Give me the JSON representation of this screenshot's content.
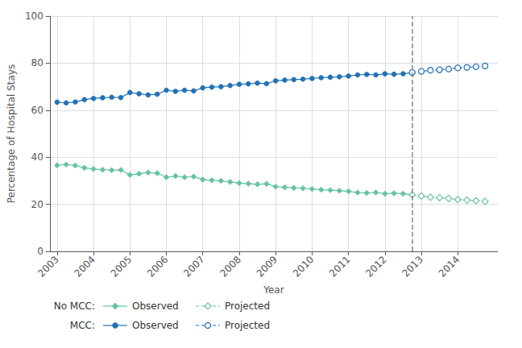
{
  "chart_data": {
    "type": "line",
    "xlabel": "Year",
    "ylabel": "Percentage of Hospital Stays",
    "xlim": [
      2002.8,
      2015.1
    ],
    "xticks": [
      2003,
      2004,
      2005,
      2006,
      2007,
      2008,
      2009,
      2010,
      2011,
      2012,
      2013,
      2014
    ],
    "ylim": [
      0,
      100
    ],
    "yticks": [
      0,
      20,
      40,
      60,
      80,
      100
    ],
    "grid": true,
    "annotations": [
      "No MCC:",
      "MCC:"
    ],
    "vline": {
      "x": 2012.75,
      "color": "#888888",
      "line_style": "dashed"
    },
    "series": [
      {
        "name": "Observed",
        "color": "#66c2a4",
        "marker": "diamond",
        "line_style": "solid",
        "x": [
          2003.0,
          2003.25,
          2003.5,
          2003.75,
          2004.0,
          2004.25,
          2004.5,
          2004.75,
          2005.0,
          2005.25,
          2005.5,
          2005.75,
          2006.0,
          2006.25,
          2006.5,
          2006.75,
          2007.0,
          2007.25,
          2007.5,
          2007.75,
          2008.0,
          2008.25,
          2008.5,
          2008.75,
          2009.0,
          2009.25,
          2009.5,
          2009.75,
          2010.0,
          2010.25,
          2010.5,
          2010.75,
          2011.0,
          2011.25,
          2011.5,
          2011.75,
          2012.0,
          2012.25,
          2012.5,
          2012.75
        ],
        "values": [
          36.6,
          36.9,
          36.5,
          35.5,
          35.0,
          34.7,
          34.5,
          34.6,
          32.5,
          33.0,
          33.5,
          33.2,
          31.5,
          32.0,
          31.5,
          31.8,
          30.5,
          30.2,
          30.0,
          29.5,
          29.0,
          28.8,
          28.5,
          28.7,
          27.5,
          27.2,
          27.0,
          26.8,
          26.5,
          26.2,
          26.0,
          25.8,
          25.5,
          25.0,
          24.8,
          25.0,
          24.5,
          24.7,
          24.5,
          24.0
        ]
      },
      {
        "name": "Projected",
        "color": "#66c2a4",
        "marker": "open_diamond",
        "line_style": "dashed",
        "x": [
          2012.75,
          2013.0,
          2013.25,
          2013.5,
          2013.75,
          2014.0,
          2014.25,
          2014.5,
          2014.75
        ],
        "values": [
          24.0,
          23.5,
          23.0,
          22.8,
          22.5,
          22.0,
          21.8,
          21.5,
          21.2
        ]
      },
      {
        "name": "Observed",
        "color": "#2171b5",
        "marker": "circle",
        "line_style": "solid",
        "x": [
          2003.0,
          2003.25,
          2003.5,
          2003.75,
          2004.0,
          2004.25,
          2004.5,
          2004.75,
          2005.0,
          2005.25,
          2005.5,
          2005.75,
          2006.0,
          2006.25,
          2006.5,
          2006.75,
          2007.0,
          2007.25,
          2007.5,
          2007.75,
          2008.0,
          2008.25,
          2008.5,
          2008.75,
          2009.0,
          2009.25,
          2009.5,
          2009.75,
          2010.0,
          2010.25,
          2010.5,
          2010.75,
          2011.0,
          2011.25,
          2011.5,
          2011.75,
          2012.0,
          2012.25,
          2012.5,
          2012.75
        ],
        "values": [
          63.4,
          63.1,
          63.5,
          64.5,
          65.0,
          65.3,
          65.5,
          65.4,
          67.5,
          67.0,
          66.5,
          66.8,
          68.5,
          68.0,
          68.5,
          68.2,
          69.5,
          69.8,
          70.0,
          70.5,
          71.0,
          71.2,
          71.5,
          71.3,
          72.5,
          72.8,
          73.0,
          73.2,
          73.5,
          73.8,
          74.0,
          74.2,
          74.5,
          75.0,
          75.2,
          75.0,
          75.5,
          75.3,
          75.5,
          76.0
        ]
      },
      {
        "name": "Projected",
        "color": "#2171b5",
        "marker": "open_circle",
        "line_style": "dashed",
        "x": [
          2012.75,
          2013.0,
          2013.25,
          2013.5,
          2013.75,
          2014.0,
          2014.25,
          2014.5,
          2014.75
        ],
        "values": [
          76.0,
          76.5,
          77.0,
          77.2,
          77.5,
          78.0,
          78.2,
          78.5,
          78.8
        ]
      }
    ]
  }
}
